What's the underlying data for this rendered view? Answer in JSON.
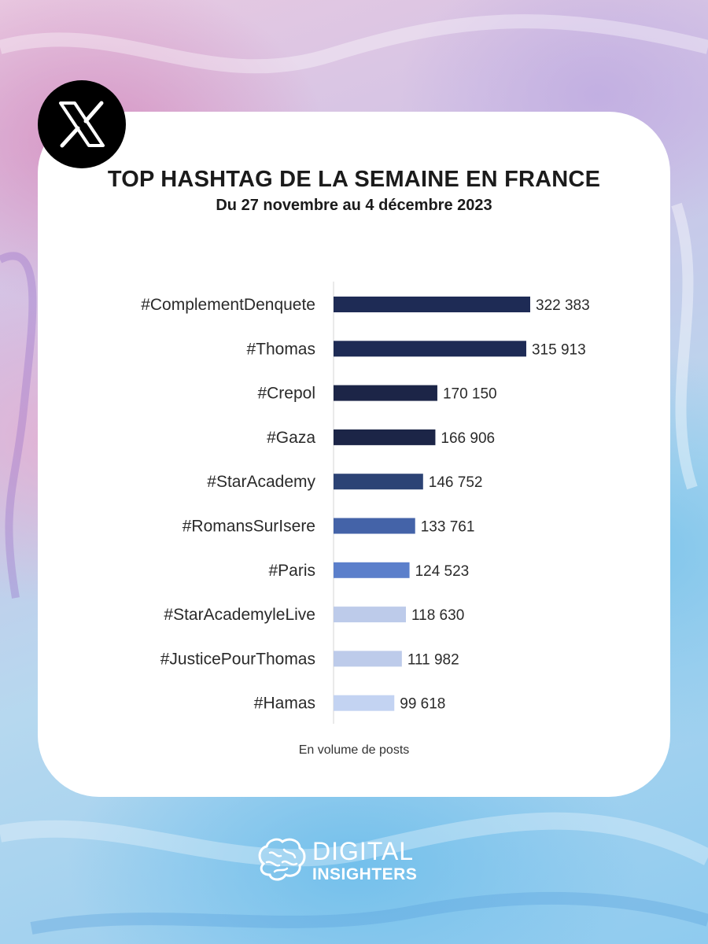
{
  "header": {
    "title": "TOP HASHTAG DE LA SEMAINE EN FRANCE",
    "subtitle": "Du 27 novembre au 4 décembre 2023"
  },
  "icons": {
    "platform": "x-logo-icon",
    "brand": "brain-icon"
  },
  "footnote": "En volume de posts",
  "brand": {
    "line1": "DIGITAL",
    "line2": "INSIGHTERS"
  },
  "colors": {
    "dark": "#1e2b55",
    "darker": "#1c2547",
    "navy": "#2c4375",
    "mid": "#4463a8",
    "light": "#5b7fcb",
    "pale": "#bdcbea",
    "paler": "#c3d3f2"
  },
  "chart_data": {
    "type": "bar",
    "orientation": "horizontal",
    "title": "TOP HASHTAG DE LA SEMAINE EN FRANCE",
    "subtitle": "Du 27 novembre au 4 décembre 2023",
    "xlabel": "",
    "ylabel": "",
    "note": "En volume de posts",
    "categories": [
      "#ComplementDenquete",
      "#Thomas",
      "#Crepol",
      "#Gaza",
      "#StarAcademy",
      "#RomansSurIsere",
      "#Paris",
      "#StarAcademyleLive",
      "#JusticePourThomas",
      "#Hamas"
    ],
    "values": [
      322383,
      315913,
      170150,
      166906,
      146752,
      133761,
      124523,
      118630,
      111982,
      99618
    ],
    "value_labels": [
      "322 383",
      "315 913",
      "170 150",
      "166 906",
      "146 752",
      "133 761",
      "124 523",
      "118 630",
      "111 982",
      "99 618"
    ],
    "bar_colors": [
      "#1e2b55",
      "#1e2b55",
      "#1c2547",
      "#1c2547",
      "#2c4375",
      "#4463a8",
      "#5b7fcb",
      "#bdcbea",
      "#bdcbea",
      "#c3d3f2"
    ],
    "xlim": [
      0,
      322383
    ],
    "grid": false,
    "legend": "none"
  }
}
